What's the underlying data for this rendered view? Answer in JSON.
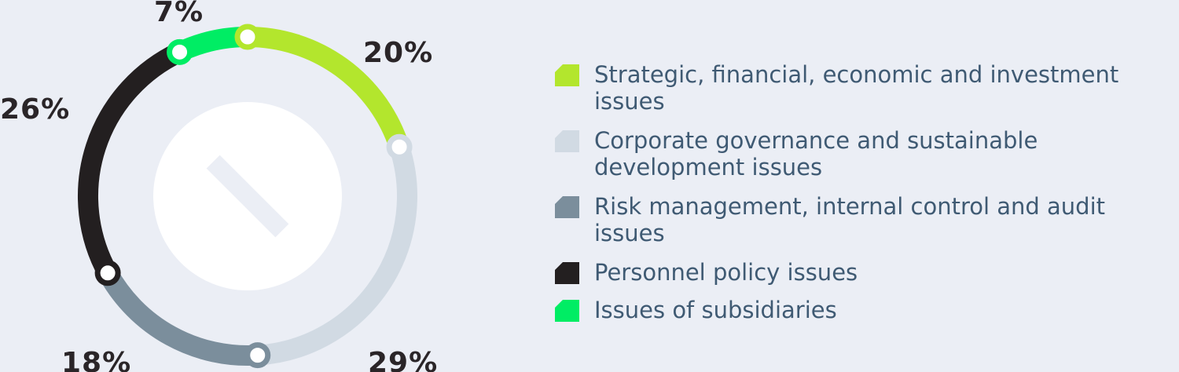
{
  "chart_data": {
    "type": "donut",
    "title": "",
    "series": [
      {
        "name": "Strategic, financial, economic and investment issues",
        "value": 20,
        "label": "20%",
        "color": "#b3e62d"
      },
      {
        "name": "Corporate governance and sustainable development issues",
        "value": 29,
        "label": "29%",
        "color": "#d1dae3"
      },
      {
        "name": "Risk management, internal control and audit issues",
        "value": 18,
        "label": "18%",
        "color": "#7b8e9c"
      },
      {
        "name": "Personnel policy issues",
        "value": 26,
        "label": "26%",
        "color": "#231f20"
      },
      {
        "name": "Issues of subsidiaries",
        "value": 7,
        "label": "7%",
        "color": "#00ed64"
      }
    ],
    "legend_placement": "right",
    "center_icon": "slash-icon"
  }
}
